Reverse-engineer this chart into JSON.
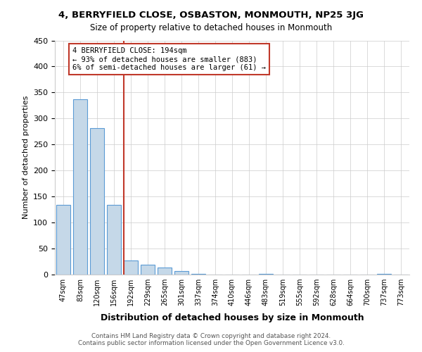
{
  "title": "4, BERRYFIELD CLOSE, OSBASTON, MONMOUTH, NP25 3JG",
  "subtitle": "Size of property relative to detached houses in Monmouth",
  "xlabel": "Distribution of detached houses by size in Monmouth",
  "ylabel": "Number of detached properties",
  "bar_color": "#c5d8e8",
  "bar_edge_color": "#5b9bd5",
  "categories": [
    "47sqm",
    "83sqm",
    "120sqm",
    "156sqm",
    "192sqm",
    "229sqm",
    "265sqm",
    "301sqm",
    "337sqm",
    "374sqm",
    "410sqm",
    "446sqm",
    "483sqm",
    "519sqm",
    "555sqm",
    "592sqm",
    "628sqm",
    "664sqm",
    "700sqm",
    "737sqm",
    "773sqm"
  ],
  "values": [
    134,
    337,
    281,
    134,
    27,
    19,
    13,
    7,
    2,
    0,
    0,
    0,
    1,
    0,
    0,
    0,
    0,
    0,
    0,
    2,
    0
  ],
  "ylim": [
    0,
    450
  ],
  "yticks": [
    0,
    50,
    100,
    150,
    200,
    250,
    300,
    350,
    400,
    450
  ],
  "vline_position": 3.6,
  "vline_color": "#c0392b",
  "annotation_text": "4 BERRYFIELD CLOSE: 194sqm\n← 93% of detached houses are smaller (883)\n6% of semi-detached houses are larger (61) →",
  "annotation_box_color": "#c0392b",
  "footer_line1": "Contains HM Land Registry data © Crown copyright and database right 2024.",
  "footer_line2": "Contains public sector information licensed under the Open Government Licence v3.0.",
  "bg_color": "#ffffff",
  "grid_color": "#cccccc"
}
